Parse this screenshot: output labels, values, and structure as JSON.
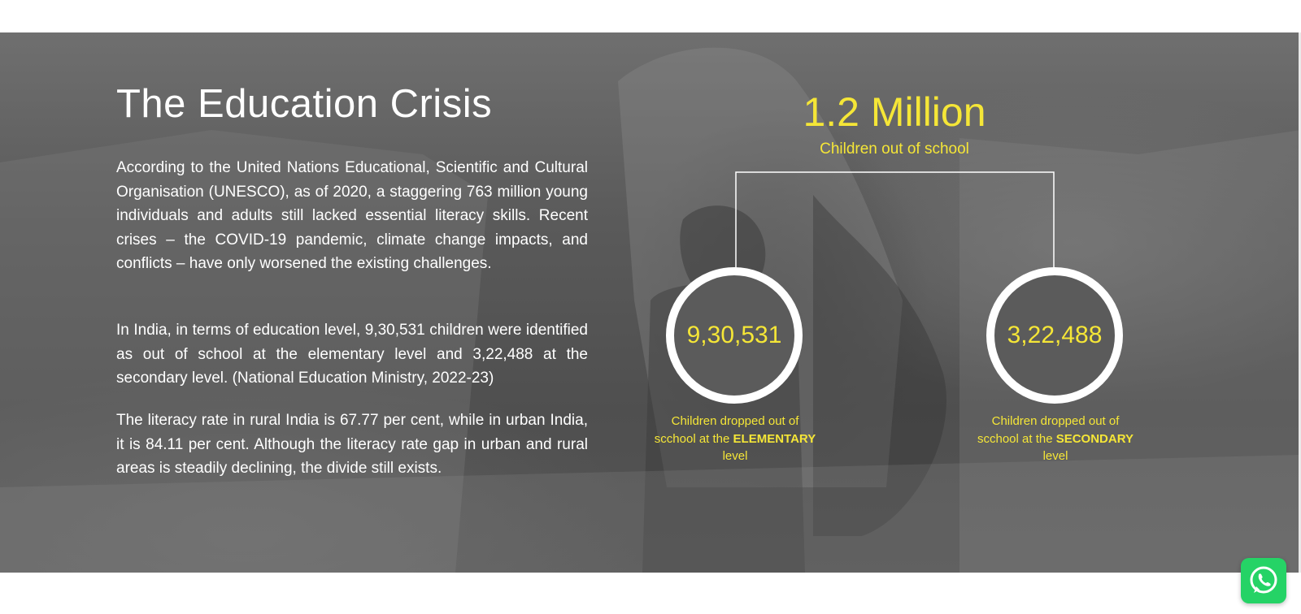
{
  "section": {
    "title": "The Education Crisis",
    "paragraphs": [
      "According to the United Nations Educational, Scientific and Cultural Organisation (UNESCO), as of 2020, a staggering 763 million young individuals and adults still lacked essential literacy skills. Recent crises – the COVID-19 pandemic, climate change impacts, and conflicts – have only worsened the existing challenges.",
      "In India, in terms of education level, 9,30,531 children were identified as out of school at the elementary level and 3,22,488 at the secondary level. (National Education Ministry, 2022-23)",
      "The literacy rate in rural India is 67.77 per cent, while in urban India, it is 84.11 per cent. Although the literacy rate gap in urban and rural areas is steadily declining, the divide still exists."
    ]
  },
  "stats": {
    "total_value": "1.2 Million",
    "total_label": "Children out of school",
    "breakdown": [
      {
        "value": "9,30,531",
        "caption_prefix": "Children dropped out of scchool at the",
        "caption_emphasis": "ELEMENTARY",
        "caption_suffix": "level"
      },
      {
        "value": "3,22,488",
        "caption_prefix": "Children dropped out of scchool at the",
        "caption_emphasis": "SECONDARY",
        "caption_suffix": "level"
      }
    ]
  },
  "colors": {
    "accent": "#f5e637",
    "whatsapp": "#25d366"
  },
  "icons": {
    "floating_button": "whatsapp-icon"
  }
}
